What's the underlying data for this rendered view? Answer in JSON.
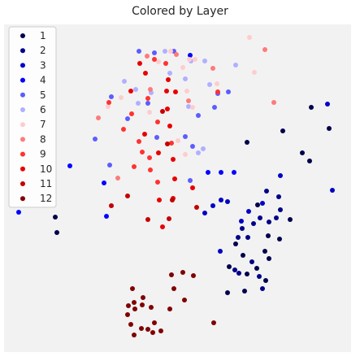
{
  "chart_data": {
    "type": "scatter",
    "title": "Colored by Layer",
    "xlabel": "",
    "ylabel": "",
    "grid": false,
    "axes_visible": false,
    "background": "#f2f2f2",
    "legend_position": "top-left",
    "series": [
      {
        "name": "1",
        "color": "#00004c",
        "points": [
          [
            383,
            132
          ],
          [
            405,
            158
          ],
          [
            348,
            161
          ],
          [
            372,
            188
          ],
          [
            381,
            198
          ],
          [
            357,
            270
          ],
          [
            304,
            175
          ],
          [
            317,
            252
          ],
          [
            299,
            314
          ],
          [
            282,
            328
          ],
          [
            290,
            300
          ],
          [
            330,
            290
          ],
          [
            344,
            294
          ],
          [
            326,
            309
          ],
          [
            316,
            330
          ],
          [
            304,
            337
          ],
          [
            331,
            318
          ],
          [
            327,
            345
          ],
          [
            301,
            358
          ],
          [
            280,
            360
          ],
          [
            68,
            267
          ],
          [
            70,
            286
          ]
        ]
      },
      {
        "name": "2",
        "color": "#000088",
        "points": [
          [
            328,
            235
          ],
          [
            343,
            242
          ],
          [
            345,
            258
          ],
          [
            340,
            268
          ],
          [
            331,
            273
          ],
          [
            320,
            268
          ],
          [
            312,
            275
          ],
          [
            298,
            281
          ],
          [
            305,
            292
          ],
          [
            293,
            292
          ],
          [
            289,
            332
          ],
          [
            294,
            336
          ],
          [
            310,
            322
          ],
          [
            319,
            340
          ],
          [
            323,
            355
          ]
        ]
      },
      {
        "name": "3",
        "color": "#0000c6",
        "points": [
          [
            403,
            128
          ],
          [
            409,
            234
          ],
          [
            345,
            216
          ],
          [
            323,
            250
          ],
          [
            306,
            260
          ],
          [
            297,
            272
          ],
          [
            280,
            248
          ],
          [
            272,
            246
          ],
          [
            262,
            253
          ],
          [
            252,
            262
          ],
          [
            271,
            309
          ]
        ]
      },
      {
        "name": "4",
        "color": "#0404ff",
        "points": [
          [
            86,
            204
          ],
          [
            23,
            261
          ],
          [
            234,
            68
          ],
          [
            256,
            212
          ],
          [
            272,
            212
          ],
          [
            288,
            212
          ],
          [
            128,
            225
          ],
          [
            131,
            266
          ]
        ]
      },
      {
        "name": "5",
        "color": "#5c5cff",
        "points": [
          [
            171,
            63
          ],
          [
            190,
            65
          ],
          [
            214,
            63
          ],
          [
            137,
            119
          ],
          [
            157,
            146
          ],
          [
            268,
            115
          ],
          [
            244,
            142
          ],
          [
            264,
            132
          ],
          [
            281,
            113
          ],
          [
            193,
            169
          ],
          [
            228,
            168
          ],
          [
            237,
            180
          ],
          [
            234,
            222
          ],
          [
            117,
            171
          ],
          [
            135,
            203
          ],
          [
            182,
            127
          ]
        ]
      },
      {
        "name": "6",
        "color": "#b0b0ff",
        "points": [
          [
            153,
            100
          ],
          [
            167,
            110
          ],
          [
            203,
            63
          ],
          [
            235,
            75
          ],
          [
            252,
            75
          ],
          [
            209,
            90
          ],
          [
            228,
            97
          ],
          [
            258,
            104
          ],
          [
            290,
            80
          ],
          [
            170,
            127
          ],
          [
            232,
            131
          ],
          [
            186,
            114
          ],
          [
            244,
            188
          ],
          [
            250,
            183
          ]
        ]
      },
      {
        "name": "7",
        "color": "#ffcccc",
        "points": [
          [
            307,
            46
          ],
          [
            210,
            63
          ],
          [
            233,
            73
          ],
          [
            240,
            73
          ],
          [
            225,
            83
          ],
          [
            195,
            76
          ],
          [
            133,
            131
          ],
          [
            230,
            112
          ],
          [
            237,
            132
          ],
          [
            267,
            103
          ],
          [
            313,
            89
          ],
          [
            219,
            173
          ],
          [
            228,
            190
          ],
          [
            184,
            138
          ],
          [
            149,
            120
          ]
        ]
      },
      {
        "name": "8",
        "color": "#ff7a7a",
        "points": [
          [
            326,
            61
          ],
          [
            217,
            67
          ],
          [
            181,
            69
          ],
          [
            262,
            84
          ],
          [
            121,
            145
          ],
          [
            145,
            219
          ],
          [
            232,
            124
          ],
          [
            337,
            126
          ],
          [
            185,
            110
          ]
        ]
      },
      {
        "name": "9",
        "color": "#ff3232",
        "points": [
          [
            190,
            73
          ],
          [
            134,
            126
          ],
          [
            162,
            140
          ],
          [
            152,
            159
          ],
          [
            194,
            150
          ],
          [
            211,
            176
          ],
          [
            171,
            174
          ],
          [
            204,
            78
          ],
          [
            182,
            121
          ],
          [
            175,
            187
          ],
          [
            184,
            194
          ],
          [
            165,
            205
          ],
          [
            185,
            209
          ],
          [
            194,
            224
          ],
          [
            268,
            113
          ]
        ]
      },
      {
        "name": "10",
        "color": "#e80000",
        "points": [
          [
            172,
            78
          ],
          [
            161,
            112
          ],
          [
            179,
            90
          ],
          [
            205,
            112
          ],
          [
            207,
            98
          ],
          [
            206,
            134
          ],
          [
            195,
            188
          ],
          [
            213,
            196
          ],
          [
            215,
            220
          ],
          [
            237,
            231
          ],
          [
            213,
            244
          ],
          [
            196,
            246
          ],
          [
            216,
            113
          ],
          [
            209,
            155
          ],
          [
            178,
            165
          ],
          [
            200,
            279
          ]
        ]
      },
      {
        "name": "11",
        "color": "#c40000",
        "points": [
          [
            137,
            253
          ],
          [
            157,
            241
          ],
          [
            212,
            246
          ],
          [
            242,
            255
          ],
          [
            208,
            269
          ],
          [
            182,
            270
          ],
          [
            206,
            177
          ],
          [
            200,
            137
          ]
        ]
      },
      {
        "name": "12",
        "color": "#800000",
        "points": [
          [
            211,
            338
          ],
          [
            225,
            335
          ],
          [
            238,
            339
          ],
          [
            214,
            355
          ],
          [
            163,
            355
          ],
          [
            165,
            372
          ],
          [
            158,
            376
          ],
          [
            166,
            380
          ],
          [
            175,
            375
          ],
          [
            176,
            366
          ],
          [
            186,
            378
          ],
          [
            157,
            387
          ],
          [
            161,
            399
          ],
          [
            190,
            397
          ],
          [
            174,
            404
          ],
          [
            182,
            405
          ],
          [
            188,
            409
          ],
          [
            198,
            407
          ],
          [
            165,
            412
          ],
          [
            209,
            380
          ],
          [
            227,
            369
          ],
          [
            263,
            397
          ]
        ]
      }
    ]
  }
}
